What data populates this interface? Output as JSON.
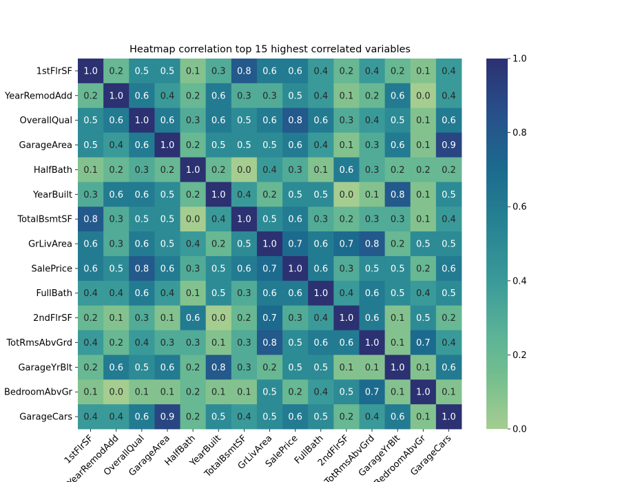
{
  "chart_data": {
    "type": "heatmap",
    "title": "Heatmap correlation top 15 highest correlated variables",
    "x_labels": [
      "1stFlrSF",
      "YearRemodAdd",
      "OverallQual",
      "GarageArea",
      "HalfBath",
      "YearBuilt",
      "TotalBsmtSF",
      "GrLivArea",
      "SalePrice",
      "FullBath",
      "2ndFlrSF",
      "TotRmsAbvGrd",
      "GarageYrBlt",
      "BedroomAbvGr",
      "GarageCars"
    ],
    "y_labels": [
      "1stFlrSF",
      "YearRemodAdd",
      "OverallQual",
      "GarageArea",
      "HalfBath",
      "YearBuilt",
      "TotalBsmtSF",
      "GrLivArea",
      "SalePrice",
      "FullBath",
      "2ndFlrSF",
      "TotRmsAbvGrd",
      "GarageYrBlt",
      "BedroomAbvGr",
      "GarageCars"
    ],
    "values": [
      [
        1.0,
        0.2,
        0.5,
        0.5,
        0.1,
        0.3,
        0.8,
        0.6,
        0.6,
        0.4,
        0.2,
        0.4,
        0.2,
        0.1,
        0.4
      ],
      [
        0.2,
        1.0,
        0.6,
        0.4,
        0.2,
        0.6,
        0.3,
        0.3,
        0.5,
        0.4,
        0.1,
        0.2,
        0.6,
        0.0,
        0.4
      ],
      [
        0.5,
        0.6,
        1.0,
        0.6,
        0.3,
        0.6,
        0.5,
        0.6,
        0.8,
        0.6,
        0.3,
        0.4,
        0.5,
        0.1,
        0.6
      ],
      [
        0.5,
        0.4,
        0.6,
        1.0,
        0.2,
        0.5,
        0.5,
        0.5,
        0.6,
        0.4,
        0.1,
        0.3,
        0.6,
        0.1,
        0.9
      ],
      [
        0.1,
        0.2,
        0.3,
        0.2,
        1.0,
        0.2,
        0.0,
        0.4,
        0.3,
        0.1,
        0.6,
        0.3,
        0.2,
        0.2,
        0.2
      ],
      [
        0.3,
        0.6,
        0.6,
        0.5,
        0.2,
        1.0,
        0.4,
        0.2,
        0.5,
        0.5,
        0.0,
        0.1,
        0.8,
        0.1,
        0.5
      ],
      [
        0.8,
        0.3,
        0.5,
        0.5,
        0.0,
        0.4,
        1.0,
        0.5,
        0.6,
        0.3,
        0.2,
        0.3,
        0.3,
        0.1,
        0.4
      ],
      [
        0.6,
        0.3,
        0.6,
        0.5,
        0.4,
        0.2,
        0.5,
        1.0,
        0.7,
        0.6,
        0.7,
        0.8,
        0.2,
        0.5,
        0.5
      ],
      [
        0.6,
        0.5,
        0.8,
        0.6,
        0.3,
        0.5,
        0.6,
        0.7,
        1.0,
        0.6,
        0.3,
        0.5,
        0.5,
        0.2,
        0.6
      ],
      [
        0.4,
        0.4,
        0.6,
        0.4,
        0.1,
        0.5,
        0.3,
        0.6,
        0.6,
        1.0,
        0.4,
        0.6,
        0.5,
        0.4,
        0.5
      ],
      [
        0.2,
        0.1,
        0.3,
        0.1,
        0.6,
        0.0,
        0.2,
        0.7,
        0.3,
        0.4,
        1.0,
        0.6,
        0.1,
        0.5,
        0.2
      ],
      [
        0.4,
        0.2,
        0.4,
        0.3,
        0.3,
        0.1,
        0.3,
        0.8,
        0.5,
        0.6,
        0.6,
        1.0,
        0.1,
        0.7,
        0.4
      ],
      [
        0.2,
        0.6,
        0.5,
        0.6,
        0.2,
        0.8,
        0.3,
        0.2,
        0.5,
        0.5,
        0.1,
        0.1,
        1.0,
        0.1,
        0.6
      ],
      [
        0.1,
        0.0,
        0.1,
        0.1,
        0.2,
        0.1,
        0.1,
        0.5,
        0.2,
        0.4,
        0.5,
        0.7,
        0.1,
        1.0,
        0.1
      ],
      [
        0.4,
        0.4,
        0.6,
        0.9,
        0.2,
        0.5,
        0.4,
        0.5,
        0.6,
        0.5,
        0.2,
        0.4,
        0.6,
        0.1,
        1.0
      ]
    ],
    "colorbar": {
      "range": [
        0.0,
        1.0
      ],
      "ticks": [
        "0.0",
        "0.2",
        "0.4",
        "0.6",
        "0.8",
        "1.0"
      ],
      "colormap": "crest"
    },
    "annotation_colors": {
      "light": "#ffffff",
      "dark": "#262626"
    }
  }
}
